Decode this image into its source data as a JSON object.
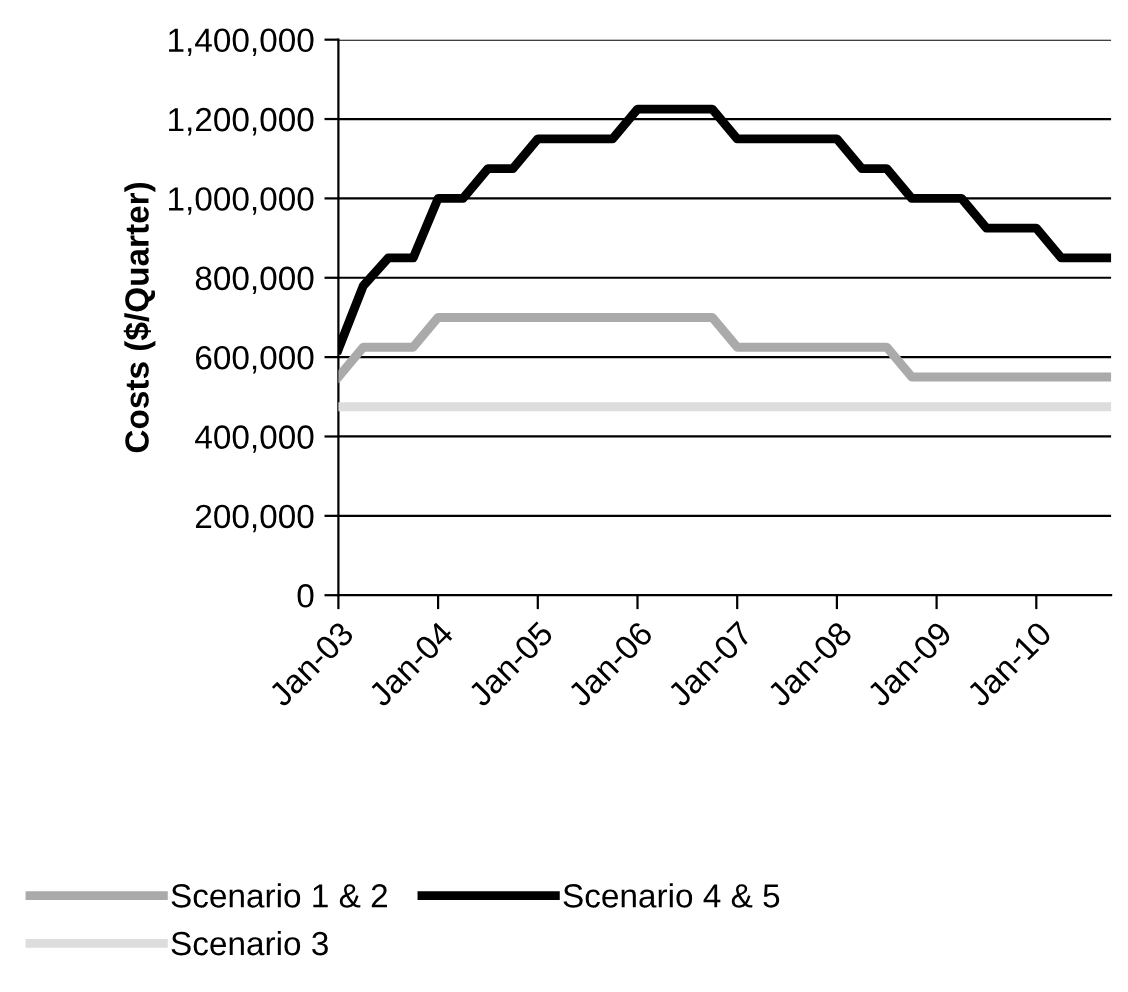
{
  "chart_data": {
    "type": "line",
    "ylabel": "Costs ($/Quarter)",
    "categories": [
      "Jan-03",
      null,
      null,
      null,
      "Jan-04",
      null,
      null,
      null,
      "Jan-05",
      null,
      null,
      null,
      "Jan-06",
      null,
      null,
      null,
      "Jan-07",
      null,
      null,
      null,
      "Jan-08",
      null,
      null,
      null,
      "Jan-09",
      null,
      null,
      null,
      "Jan-10",
      null,
      null,
      null
    ],
    "series": [
      {
        "name": "Scenario 1 & 2",
        "color": "#aaaaaa",
        "values": [
          550000,
          625000,
          625000,
          625000,
          700000,
          700000,
          700000,
          700000,
          700000,
          700000,
          700000,
          700000,
          700000,
          700000,
          700000,
          700000,
          625000,
          625000,
          625000,
          625000,
          625000,
          625000,
          625000,
          550000,
          550000,
          550000,
          550000,
          550000,
          550000,
          550000,
          550000,
          550000
        ]
      },
      {
        "name": "Scenario 3",
        "color": "#dddddd",
        "values": [
          475000,
          475000,
          475000,
          475000,
          475000,
          475000,
          475000,
          475000,
          475000,
          475000,
          475000,
          475000,
          475000,
          475000,
          475000,
          475000,
          475000,
          475000,
          475000,
          475000,
          475000,
          475000,
          475000,
          475000,
          475000,
          475000,
          475000,
          475000,
          475000,
          475000,
          475000,
          475000
        ]
      },
      {
        "name": "Scenario 4 & 5",
        "color": "#000000",
        "values": [
          620000,
          780000,
          850000,
          850000,
          1000000,
          1000000,
          1075000,
          1075000,
          1150000,
          1150000,
          1150000,
          1150000,
          1225000,
          1225000,
          1225000,
          1225000,
          1150000,
          1150000,
          1150000,
          1150000,
          1150000,
          1075000,
          1075000,
          1000000,
          1000000,
          1000000,
          925000,
          925000,
          925000,
          850000,
          850000,
          850000
        ]
      }
    ],
    "ylim": [
      0,
      1400000
    ],
    "yticks": [
      0,
      {
        "value": 200000,
        "label": "200,000"
      },
      {
        "value": 400000,
        "label": "400,000"
      },
      {
        "value": 600000,
        "label": "600,000"
      },
      {
        "value": 800000,
        "label": "800,000"
      },
      {
        "value": 1000000,
        "label": "1,000,000"
      },
      {
        "value": 1200000,
        "label": "1,200,000"
      },
      {
        "value": 1400000,
        "label": "1,400,000"
      }
    ],
    "grid": "y",
    "legend": "bottom",
    "marker": "none",
    "line_style": "solid"
  }
}
